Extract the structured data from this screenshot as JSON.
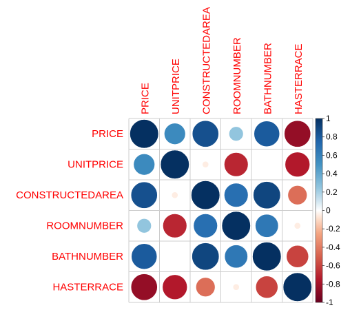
{
  "chart_data": {
    "type": "heatmap",
    "variables": [
      "PRICE",
      "UNITPRICE",
      "CONSTRUCTEDAREA",
      "ROOMNUMBER",
      "BATHNUMBER",
      "HASTERRACE"
    ],
    "matrix": [
      [
        1.0,
        0.55,
        0.85,
        0.25,
        0.8,
        -0.85
      ],
      [
        0.55,
        1.0,
        -0.05,
        -0.7,
        0.0,
        -0.75
      ],
      [
        0.85,
        -0.05,
        1.0,
        0.7,
        0.9,
        -0.45
      ],
      [
        0.25,
        -0.7,
        0.7,
        1.0,
        0.65,
        -0.05
      ],
      [
        0.8,
        0.0,
        0.9,
        0.65,
        1.0,
        -0.6
      ],
      [
        -0.85,
        -0.75,
        -0.45,
        -0.05,
        -0.6,
        1.0
      ]
    ],
    "colorbar": {
      "range": [
        -1,
        1
      ],
      "ticks": [
        "1",
        "0.8",
        "0.6",
        "0.4",
        "0.2",
        "0",
        "-0.2",
        "-0.4",
        "-0.6",
        "-0.8",
        "-1"
      ]
    },
    "colors": {
      "labels": "#ff0000",
      "grid": "#cccccc",
      "negative_strong": "#67001f",
      "positive_strong": "#053061",
      "neutral": "#ffffff"
    }
  }
}
